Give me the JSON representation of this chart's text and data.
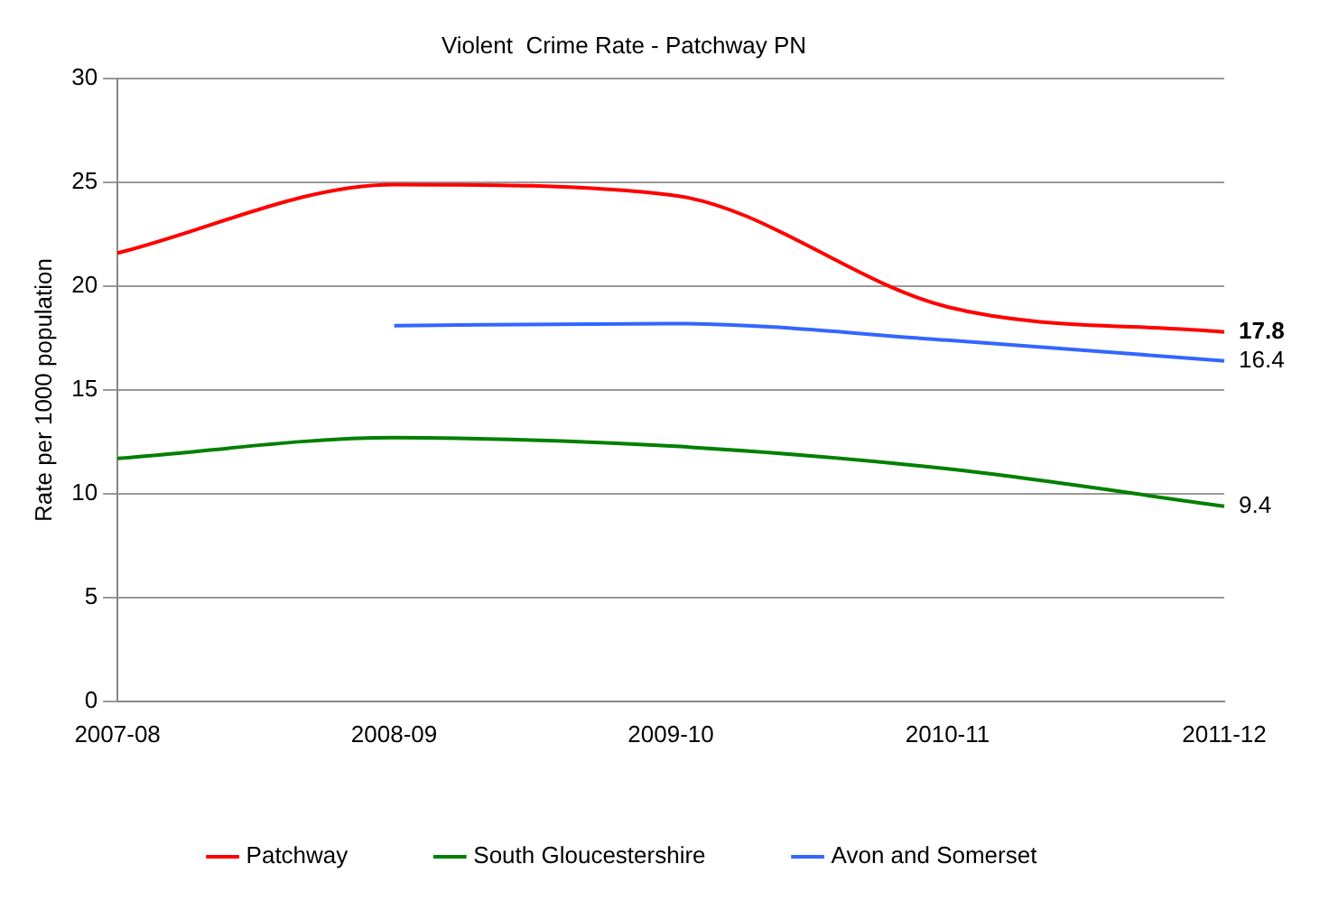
{
  "chart_data": {
    "type": "line",
    "title": "Violent  Crime Rate - Patchway PN",
    "ylabel": "Rate per 1000 population",
    "categories": [
      "2007-08",
      "2008-09",
      "2009-10",
      "2010-11",
      "2011-12"
    ],
    "series": [
      {
        "name": "Patchway",
        "color": "#ff0000",
        "values": [
          21.6,
          24.9,
          24.4,
          19.0,
          17.8
        ],
        "value_labels": [
          null,
          null,
          null,
          null,
          "17.8"
        ]
      },
      {
        "name": "South Gloucestershire",
        "color": "#008000",
        "values": [
          11.7,
          12.7,
          12.3,
          11.2,
          9.4
        ],
        "value_labels": [
          null,
          null,
          null,
          null,
          "9.4"
        ]
      },
      {
        "name": "Avon and Somerset",
        "color": "#3366ff",
        "values": [
          null,
          18.1,
          18.2,
          17.4,
          16.4
        ],
        "value_labels": [
          null,
          null,
          null,
          null,
          "16.4"
        ]
      }
    ],
    "ylim": [
      0,
      30
    ],
    "yticks": [
      0,
      5,
      10,
      15,
      20,
      25,
      30
    ],
    "grid": "y",
    "legend": "bottom",
    "marker": "none",
    "line_style": "solid"
  }
}
